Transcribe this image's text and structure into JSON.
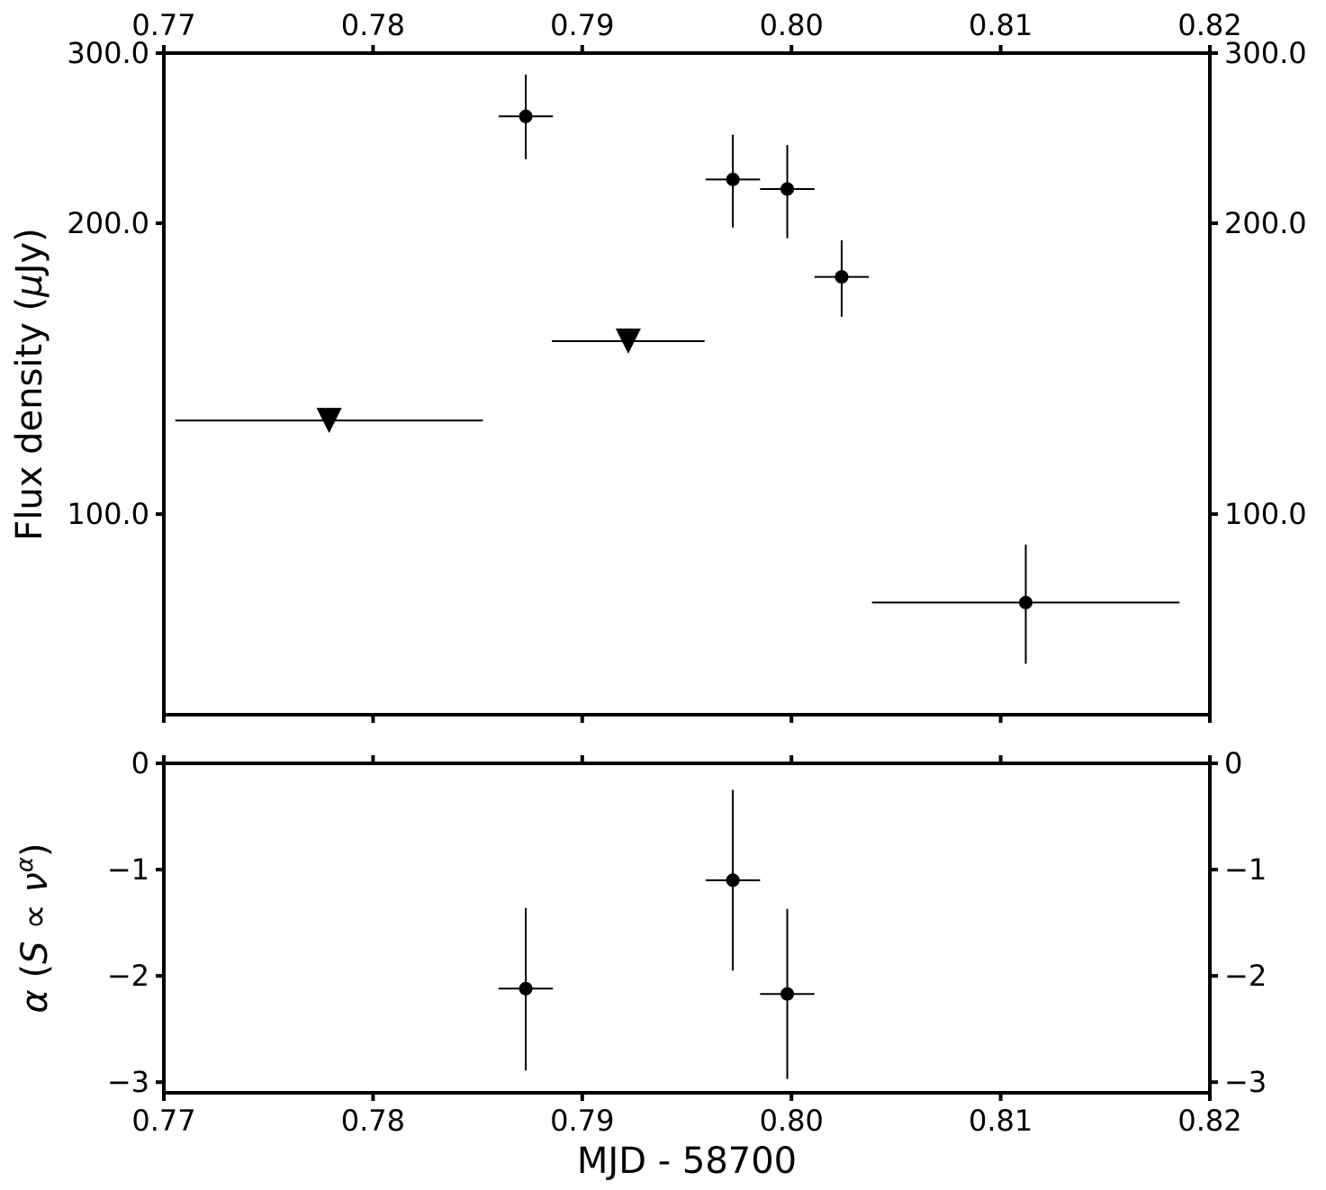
{
  "chart_data": [
    {
      "type": "scatter",
      "panel": "top",
      "xlabel": "",
      "ylabel": "Flux density (μJy)",
      "xlim": [
        0.77,
        0.82
      ],
      "ylim": [
        62,
        300
      ],
      "yscale": "log",
      "xticks": [
        0.77,
        0.78,
        0.79,
        0.8,
        0.81,
        0.82
      ],
      "xtick_labels": [
        "0.77",
        "0.78",
        "0.79",
        "0.80",
        "0.81",
        "0.82"
      ],
      "yticks": [
        100,
        200,
        300
      ],
      "ytick_labels": [
        "100.0",
        "200.0",
        "300.0"
      ],
      "grid": false,
      "detections": [
        {
          "x": 0.7873,
          "y": 258,
          "xerr": 0.0013,
          "ylo": 233,
          "yhi": 285
        },
        {
          "x": 0.7972,
          "y": 222,
          "xerr": 0.0013,
          "ylo": 198,
          "yhi": 247
        },
        {
          "x": 0.7998,
          "y": 217,
          "xerr": 0.0013,
          "ylo": 193,
          "yhi": 241
        },
        {
          "x": 0.8024,
          "y": 176,
          "xerr": 0.0013,
          "ylo": 160,
          "yhi": 192
        },
        {
          "x": 0.8112,
          "y": 81,
          "xerr": 0.00735,
          "ylo": 70,
          "yhi": 93
        }
      ],
      "upper_limits": [
        {
          "x": 0.7779,
          "y": 125,
          "xerr": 0.00735
        },
        {
          "x": 0.7922,
          "y": 151,
          "xerr": 0.00365
        }
      ]
    },
    {
      "type": "scatter",
      "panel": "bottom",
      "xlabel": "MJD - 58700",
      "ylabel": "α (S ∝ ν^α)",
      "xlim": [
        0.77,
        0.82
      ],
      "ylim": [
        -3.1,
        0
      ],
      "xticks": [
        0.77,
        0.78,
        0.79,
        0.8,
        0.81,
        0.82
      ],
      "xtick_labels": [
        "0.77",
        "0.78",
        "0.79",
        "0.80",
        "0.81",
        "0.82"
      ],
      "yticks": [
        0,
        -1,
        -2,
        -3
      ],
      "ytick_labels": [
        "0",
        "−1",
        "−2",
        "−3"
      ],
      "grid": false,
      "points": [
        {
          "x": 0.7873,
          "y": -2.12,
          "xerr": 0.0013,
          "ylo": -2.89,
          "yhi": -1.36
        },
        {
          "x": 0.7972,
          "y": -1.1,
          "xerr": 0.0013,
          "ylo": -1.95,
          "yhi": -0.25
        },
        {
          "x": 0.7998,
          "y": -2.17,
          "xerr": 0.0013,
          "ylo": -2.97,
          "yhi": -1.37
        }
      ]
    }
  ]
}
